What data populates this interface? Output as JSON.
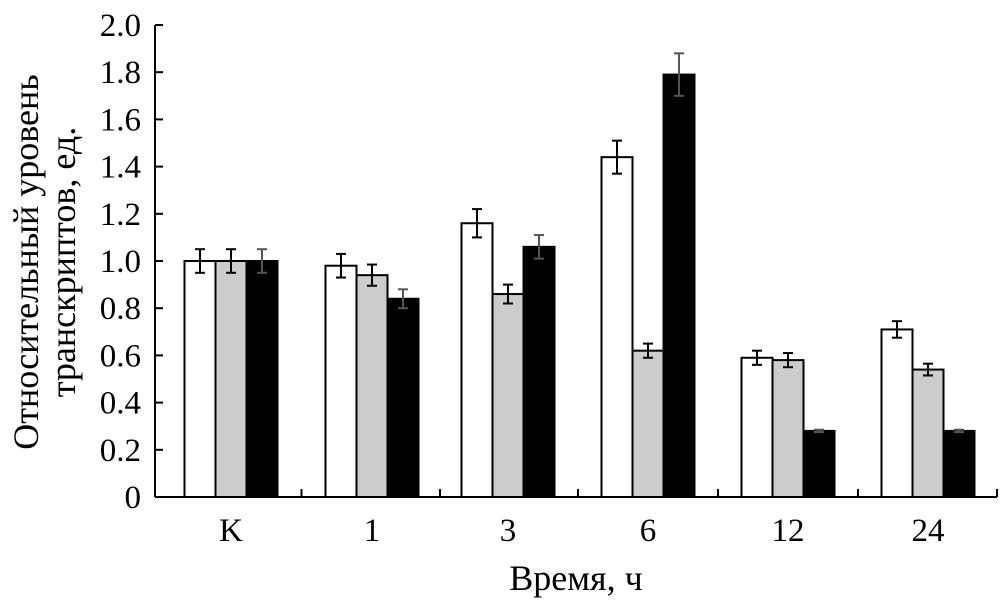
{
  "chart_data": {
    "type": "bar",
    "title": "",
    "xlabel": "Время, ч",
    "ylabel_lines": [
      "Относительный уровень",
      "транскриптов, ед."
    ],
    "categories": [
      "K",
      "1",
      "3",
      "6",
      "12",
      "24"
    ],
    "y_ticks": [
      "0",
      "0.2",
      "0.4",
      "0.6",
      "0.8",
      "1.0",
      "1.2",
      "1.4",
      "1.6",
      "1.8",
      "2.0"
    ],
    "ylim": [
      0,
      2.0
    ],
    "grid": false,
    "legend": "none",
    "series": [
      {
        "color": "#ffffff",
        "values": [
          1.0,
          0.98,
          1.16,
          1.44,
          0.59,
          0.71
        ],
        "errors": [
          0.05,
          0.05,
          0.06,
          0.07,
          0.03,
          0.035
        ]
      },
      {
        "color": "#cccccc",
        "values": [
          1.0,
          0.94,
          0.86,
          0.62,
          0.58,
          0.54
        ],
        "errors": [
          0.05,
          0.045,
          0.04,
          0.03,
          0.03,
          0.025
        ]
      },
      {
        "color": "#000000",
        "values": [
          1.0,
          0.84,
          1.06,
          1.79,
          0.28,
          0.28
        ],
        "errors": [
          0.05,
          0.04,
          0.05,
          0.09,
          0.005,
          0.005
        ]
      }
    ]
  }
}
